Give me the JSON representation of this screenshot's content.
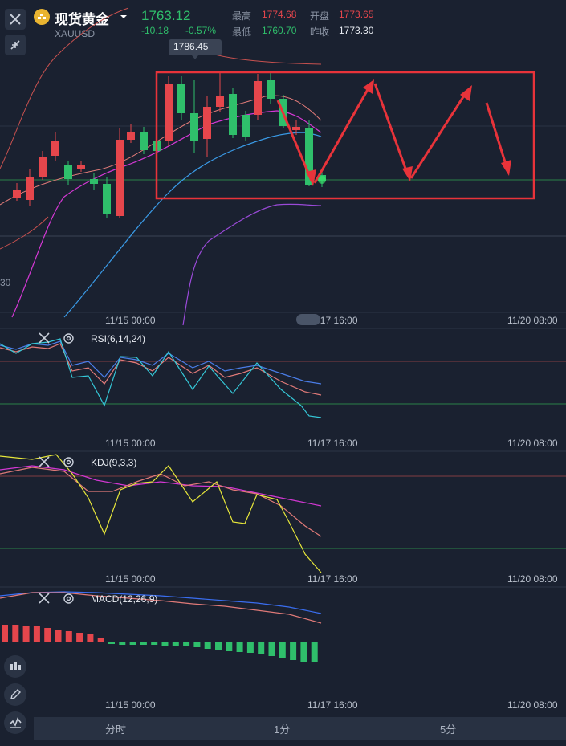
{
  "header": {
    "instrument_name": "现货黄金",
    "symbol": "XAUUSD",
    "last_price": "1763.12",
    "change": "-10.18",
    "change_pct": "-0.57%",
    "high_label": "最高",
    "high_value": "1774.68",
    "open_label": "开盘",
    "open_value": "1773.65",
    "low_label": "最低",
    "low_value": "1760.70",
    "prev_close_label": "昨收",
    "prev_close_value": "1773.30"
  },
  "price_tooltip": "1786.45",
  "price_axis_partial": "30",
  "time_labels": {
    "t1": "11/15 00:00",
    "t2": "11/17 16:00",
    "t3": "11/20 08:00"
  },
  "indicators": {
    "rsi": "RSI(6,14,24)",
    "kdj": "KDJ(9,3,3)",
    "macd": "MACD(12,26,9)"
  },
  "bottom_tabs": [
    "分时",
    "1分",
    "5分"
  ],
  "colors": {
    "up": "#e5464c",
    "down": "#2fbf6b",
    "annotation": "#e8333a",
    "background": "#1a2130"
  }
}
